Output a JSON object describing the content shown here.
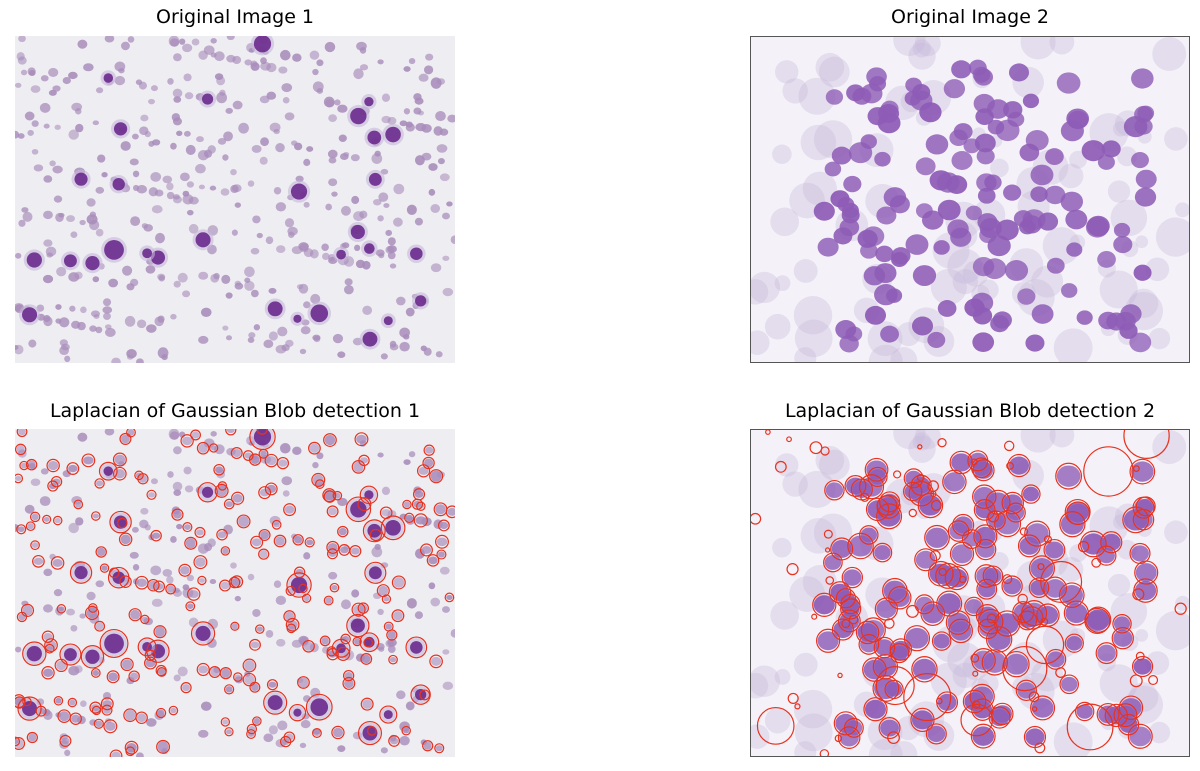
{
  "panels": [
    {
      "title": "Original Image 1"
    },
    {
      "title": "Original Image 2"
    },
    {
      "title": "Laplacian of Gaussian Blob detection 1"
    },
    {
      "title": "Laplacian of Gaussian Blob detection 2"
    }
  ],
  "colors": {
    "smear_background": "#eeeef2",
    "red_cell": "#a88cba",
    "nucleus": "#6a2a8c",
    "cluster_background": "#f4f2f8",
    "cluster_nucleus": "#8e5cb6",
    "cytoplasm": "#c6b8da",
    "detection_circle": "#e8321e"
  }
}
